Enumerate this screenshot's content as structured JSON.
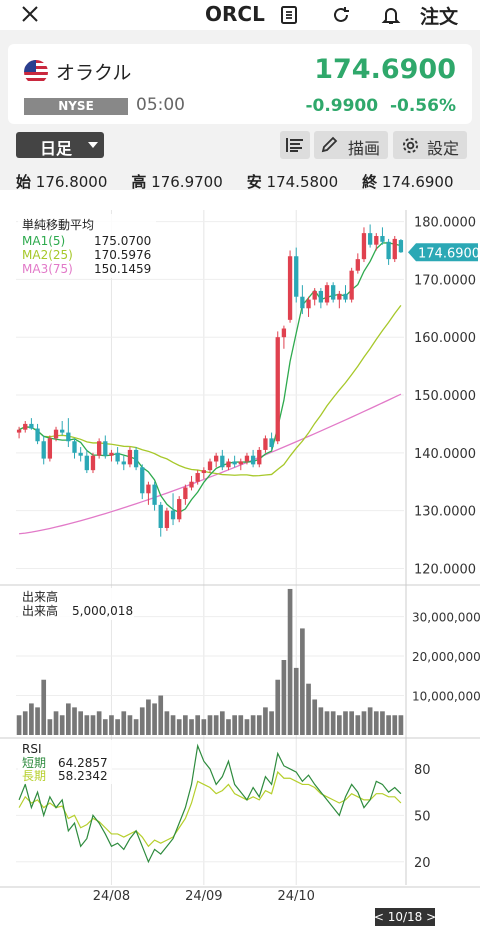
{
  "header": {
    "symbol": "ORCL",
    "order_label": "注文",
    "icons": [
      "close-icon",
      "document-icon",
      "refresh-icon",
      "bell-icon"
    ]
  },
  "quote": {
    "name": "オラクル",
    "exchange": "NYSE",
    "time": "05:00",
    "price": "174.6900",
    "change": "-0.9900",
    "change_pct": "-0.56%",
    "price_color": "#2fa86b"
  },
  "toolbar": {
    "period": "日足",
    "draw_label": "描画",
    "settings_label": "設定"
  },
  "ohlc": {
    "open_label": "始",
    "open": "176.8000",
    "high_label": "高",
    "high": "176.9700",
    "low_label": "安",
    "low": "174.5800",
    "close_label": "終",
    "close": "174.6900"
  },
  "chart_data": {
    "type": "candlestick",
    "price_panel": {
      "title": "単純移動平均",
      "ma": [
        {
          "name": "MA1(5)",
          "value": "175.0700",
          "color": "#2eaa4e"
        },
        {
          "name": "MA2(25)",
          "value": "170.5976",
          "color": "#a7c82a"
        },
        {
          "name": "MA3(75)",
          "value": "150.1459",
          "color": "#e27ac8"
        }
      ],
      "y_ticks": [
        "180.0000",
        "170.0000",
        "160.0000",
        "150.0000",
        "140.0000",
        "130.0000",
        "120.0000"
      ],
      "ylim": [
        118,
        182
      ],
      "last_price_label": "174.6900",
      "candles": [
        [
          143.5,
          144.5,
          142.5,
          144.0
        ],
        [
          144.0,
          145.5,
          143.5,
          145.0
        ],
        [
          145.0,
          146.0,
          144.0,
          144.2
        ],
        [
          144.2,
          145.0,
          141.5,
          142.0
        ],
        [
          142.0,
          143.0,
          138.0,
          139.0
        ],
        [
          139.0,
          143.0,
          138.5,
          142.5
        ],
        [
          142.5,
          144.5,
          142.0,
          144.0
        ],
        [
          144.0,
          145.5,
          143.0,
          143.5
        ],
        [
          143.5,
          146.0,
          141.0,
          142.0
        ],
        [
          142.0,
          142.5,
          139.0,
          140.0
        ],
        [
          140.0,
          141.0,
          138.5,
          139.5
        ],
        [
          139.5,
          140.5,
          136.5,
          137.0
        ],
        [
          137.0,
          140.0,
          136.5,
          139.5
        ],
        [
          139.5,
          142.5,
          139.0,
          142.0
        ],
        [
          142.0,
          143.0,
          139.0,
          139.5
        ],
        [
          139.5,
          140.5,
          138.5,
          140.0
        ],
        [
          140.0,
          141.0,
          138.0,
          138.5
        ],
        [
          138.5,
          139.5,
          137.0,
          138.0
        ],
        [
          138.0,
          141.0,
          137.5,
          140.5
        ],
        [
          140.5,
          141.0,
          137.0,
          137.5
        ],
        [
          137.5,
          138.0,
          132.0,
          133.0
        ],
        [
          133.0,
          135.0,
          131.0,
          134.5
        ],
        [
          134.5,
          135.0,
          130.0,
          131.0
        ],
        [
          131.0,
          131.5,
          125.5,
          127.0
        ],
        [
          127.0,
          130.5,
          126.5,
          130.0
        ],
        [
          130.0,
          133.0,
          127.5,
          128.5
        ],
        [
          128.5,
          132.5,
          128.0,
          132.0
        ],
        [
          132.0,
          134.5,
          131.0,
          134.0
        ],
        [
          134.0,
          136.0,
          133.5,
          135.0
        ],
        [
          135.0,
          137.0,
          134.5,
          136.5
        ],
        [
          136.5,
          137.5,
          135.5,
          137.0
        ],
        [
          137.0,
          139.0,
          136.5,
          138.5
        ],
        [
          138.5,
          140.0,
          137.5,
          139.5
        ],
        [
          139.5,
          140.5,
          137.0,
          137.5
        ],
        [
          137.5,
          139.0,
          137.0,
          138.5
        ],
        [
          138.5,
          139.5,
          137.5,
          138.0
        ],
        [
          138.0,
          139.0,
          137.0,
          138.5
        ],
        [
          138.5,
          140.0,
          138.0,
          139.5
        ],
        [
          139.5,
          140.5,
          137.5,
          138.0
        ],
        [
          138.0,
          141.0,
          137.5,
          140.5
        ],
        [
          140.5,
          143.0,
          140.0,
          142.5
        ],
        [
          142.5,
          143.5,
          140.5,
          141.0
        ],
        [
          142.0,
          161.0,
          141.5,
          160.0
        ],
        [
          160.0,
          162.0,
          158.0,
          161.5
        ],
        [
          163.0,
          175.0,
          162.5,
          174.0
        ],
        [
          174.0,
          175.5,
          166.0,
          167.0
        ],
        [
          167.0,
          169.0,
          164.0,
          165.0
        ],
        [
          165.0,
          167.0,
          163.5,
          166.5
        ],
        [
          166.5,
          168.5,
          165.5,
          168.0
        ],
        [
          168.0,
          168.5,
          165.0,
          166.0
        ],
        [
          166.0,
          169.5,
          165.5,
          169.0
        ],
        [
          169.0,
          169.5,
          166.0,
          166.5
        ],
        [
          166.5,
          168.0,
          165.0,
          167.5
        ],
        [
          167.5,
          169.0,
          166.0,
          166.5
        ],
        [
          166.5,
          172.0,
          166.0,
          171.5
        ],
        [
          171.5,
          174.5,
          171.0,
          173.5
        ],
        [
          173.5,
          179.0,
          173.0,
          178.0
        ],
        [
          178.0,
          179.5,
          175.5,
          176.0
        ],
        [
          176.0,
          178.0,
          175.0,
          177.5
        ],
        [
          177.5,
          179.0,
          176.0,
          176.5
        ],
        [
          176.5,
          177.0,
          172.5,
          173.5
        ],
        [
          173.5,
          177.5,
          173.0,
          177.0
        ],
        [
          176.8,
          176.97,
          174.58,
          174.69
        ]
      ]
    },
    "volume_panel": {
      "title": "出来高",
      "label": "出来高",
      "value": "5,000,018",
      "y_ticks": [
        "30,000,000",
        "20,000,000",
        "10,000,000"
      ],
      "ylim": [
        0,
        38000000
      ],
      "values": [
        5,
        6,
        8,
        7,
        14,
        4,
        6,
        5,
        8,
        7,
        6,
        5,
        5,
        6,
        4,
        5,
        4,
        6,
        5,
        4,
        7,
        9,
        8,
        10,
        6,
        5,
        4,
        5,
        4,
        5,
        4,
        5,
        5,
        6,
        4,
        5,
        5,
        4,
        5,
        5,
        7,
        6,
        14,
        19,
        37,
        17,
        27,
        13,
        9,
        7,
        6,
        6,
        5,
        6,
        6,
        5,
        6,
        7,
        6,
        6,
        5,
        5,
        5
      ]
    },
    "rsi_panel": {
      "title": "RSI",
      "series": [
        {
          "name": "短期",
          "value": "64.2857",
          "color": "#2e8b3e"
        },
        {
          "name": "長期",
          "value": "58.2342",
          "color": "#b6cf2c"
        }
      ],
      "y_ticks": [
        "80",
        "50",
        "20"
      ],
      "ylim": [
        5,
        100
      ],
      "short": [
        60,
        70,
        55,
        65,
        50,
        62,
        55,
        60,
        40,
        45,
        30,
        35,
        50,
        45,
        38,
        30,
        32,
        28,
        35,
        40,
        30,
        20,
        28,
        25,
        30,
        35,
        45,
        55,
        70,
        95,
        85,
        80,
        70,
        75,
        85,
        70,
        65,
        60,
        68,
        62,
        75,
        70,
        90,
        82,
        80,
        78,
        72,
        76,
        70,
        65,
        60,
        55,
        50,
        62,
        70,
        65,
        55,
        60,
        72,
        70,
        65,
        68,
        64
      ],
      "long": [
        55,
        62,
        58,
        60,
        55,
        58,
        55,
        56,
        48,
        50,
        42,
        44,
        48,
        46,
        42,
        38,
        38,
        36,
        38,
        40,
        36,
        30,
        34,
        32,
        34,
        36,
        42,
        48,
        58,
        72,
        70,
        68,
        64,
        66,
        70,
        64,
        62,
        60,
        62,
        60,
        66,
        64,
        78,
        74,
        74,
        72,
        70,
        70,
        68,
        64,
        62,
        60,
        58,
        60,
        64,
        62,
        60,
        60,
        64,
        64,
        62,
        62,
        58
      ]
    },
    "x_ticks": [
      "24/08",
      "24/09",
      "24/10"
    ],
    "x_tick_index": [
      15,
      30,
      45
    ],
    "date_label": "< 10/18 >"
  }
}
